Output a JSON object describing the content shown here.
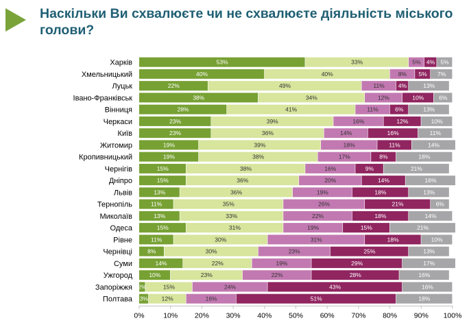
{
  "title": "Наскільки Ви схвалюєте чи не схвалюєте діяльність міського голови?",
  "colors": {
    "accent": "#7aa43a",
    "title": "#1f5f73",
    "series": [
      "#77a133",
      "#d7e59d",
      "#c279b1",
      "#902560",
      "#a6a6a8"
    ],
    "label_dark": "#ffffff",
    "label_light": "#333333"
  },
  "chart_data": {
    "type": "bar",
    "orientation": "horizontal",
    "stacked": true,
    "title": "",
    "xlabel": "",
    "ylabel": "",
    "xlim": [
      0,
      100
    ],
    "grid": false,
    "legend": "none",
    "x_ticks": [
      "0%",
      "10%",
      "20%",
      "30%",
      "40%",
      "50%",
      "60%",
      "70%",
      "80%",
      "90%",
      "100%"
    ],
    "categories": [
      "Харків",
      "Хмельницький",
      "Луцьк",
      "Івано-Франківськ",
      "Вінниця",
      "Черкаси",
      "Київ",
      "Житомир",
      "Кропивницький",
      "Чернігів",
      "Дніпро",
      "Львів",
      "Тернопіль",
      "Миколаїв",
      "Одеса",
      "Рівне",
      "Чернівці",
      "Суми",
      "Ужгород",
      "Запоріжжя",
      "Полтава"
    ],
    "series": [
      {
        "values": [
          53,
          40,
          22,
          38,
          28,
          23,
          23,
          19,
          19,
          15,
          15,
          13,
          11,
          13,
          15,
          11,
          8,
          14,
          10,
          2,
          3
        ]
      },
      {
        "values": [
          33,
          40,
          49,
          34,
          41,
          39,
          36,
          39,
          38,
          38,
          36,
          36,
          35,
          33,
          31,
          30,
          30,
          22,
          23,
          15,
          12
        ]
      },
      {
        "values": [
          5,
          8,
          11,
          12,
          11,
          16,
          14,
          18,
          17,
          16,
          20,
          19,
          26,
          22,
          19,
          31,
          23,
          19,
          22,
          24,
          16
        ]
      },
      {
        "values": [
          4,
          5,
          4,
          10,
          6,
          12,
          16,
          11,
          8,
          9,
          14,
          18,
          21,
          18,
          15,
          18,
          25,
          29,
          28,
          43,
          51
        ]
      },
      {
        "values": [
          5,
          7,
          13,
          6,
          13,
          10,
          11,
          14,
          18,
          21,
          16,
          13,
          6,
          14,
          21,
          10,
          13,
          17,
          16,
          16,
          18
        ]
      }
    ]
  }
}
